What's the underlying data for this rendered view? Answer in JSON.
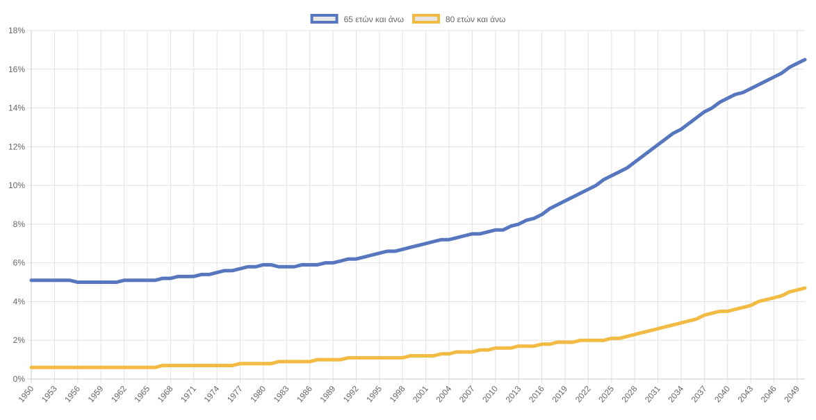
{
  "chart_data": {
    "type": "line",
    "title": "",
    "xlabel": "",
    "ylabel": "",
    "ylim": [
      0,
      18
    ],
    "y_ticks": [
      "0%",
      "2%",
      "4%",
      "6%",
      "8%",
      "10%",
      "12%",
      "14%",
      "16%",
      "18%"
    ],
    "y_tick_values": [
      0,
      2,
      4,
      6,
      8,
      10,
      12,
      14,
      16,
      18
    ],
    "y_unit_suffix": "%",
    "grid": true,
    "legend_position": "top-center",
    "x": [
      1950,
      1951,
      1952,
      1953,
      1954,
      1955,
      1956,
      1957,
      1958,
      1959,
      1960,
      1961,
      1962,
      1963,
      1964,
      1965,
      1966,
      1967,
      1968,
      1969,
      1970,
      1971,
      1972,
      1973,
      1974,
      1975,
      1976,
      1977,
      1978,
      1979,
      1980,
      1981,
      1982,
      1983,
      1984,
      1985,
      1986,
      1987,
      1988,
      1989,
      1990,
      1991,
      1992,
      1993,
      1994,
      1995,
      1996,
      1997,
      1998,
      1999,
      2000,
      2001,
      2002,
      2003,
      2004,
      2005,
      2006,
      2007,
      2008,
      2009,
      2010,
      2011,
      2012,
      2013,
      2014,
      2015,
      2016,
      2017,
      2018,
      2019,
      2020,
      2021,
      2022,
      2023,
      2024,
      2025,
      2026,
      2027,
      2028,
      2029,
      2030,
      2031,
      2032,
      2033,
      2034,
      2035,
      2036,
      2037,
      2038,
      2039,
      2040,
      2041,
      2042,
      2043,
      2044,
      2045,
      2046,
      2047,
      2048,
      2049,
      2050
    ],
    "x_tick_step": 3,
    "series": [
      {
        "name": "65 ετών και άνω",
        "color": "#5677bd",
        "values": [
          5.1,
          5.1,
          5.1,
          5.1,
          5.1,
          5.1,
          5.0,
          5.0,
          5.0,
          5.0,
          5.0,
          5.0,
          5.1,
          5.1,
          5.1,
          5.1,
          5.1,
          5.2,
          5.2,
          5.3,
          5.3,
          5.3,
          5.4,
          5.4,
          5.5,
          5.6,
          5.6,
          5.7,
          5.8,
          5.8,
          5.9,
          5.9,
          5.8,
          5.8,
          5.8,
          5.9,
          5.9,
          5.9,
          6.0,
          6.0,
          6.1,
          6.2,
          6.2,
          6.3,
          6.4,
          6.5,
          6.6,
          6.6,
          6.7,
          6.8,
          6.9,
          7.0,
          7.1,
          7.2,
          7.2,
          7.3,
          7.4,
          7.5,
          7.5,
          7.6,
          7.7,
          7.7,
          7.9,
          8.0,
          8.2,
          8.3,
          8.5,
          8.8,
          9.0,
          9.2,
          9.4,
          9.6,
          9.8,
          10.0,
          10.3,
          10.5,
          10.7,
          10.9,
          11.2,
          11.5,
          11.8,
          12.1,
          12.4,
          12.7,
          12.9,
          13.2,
          13.5,
          13.8,
          14.0,
          14.3,
          14.5,
          14.7,
          14.8,
          15.0,
          15.2,
          15.4,
          15.6,
          15.8,
          16.1,
          16.3,
          16.5
        ]
      },
      {
        "name": "80 ετών και άνω",
        "color": "#f2bb44",
        "values": [
          0.6,
          0.6,
          0.6,
          0.6,
          0.6,
          0.6,
          0.6,
          0.6,
          0.6,
          0.6,
          0.6,
          0.6,
          0.6,
          0.6,
          0.6,
          0.6,
          0.6,
          0.7,
          0.7,
          0.7,
          0.7,
          0.7,
          0.7,
          0.7,
          0.7,
          0.7,
          0.7,
          0.8,
          0.8,
          0.8,
          0.8,
          0.8,
          0.9,
          0.9,
          0.9,
          0.9,
          0.9,
          1.0,
          1.0,
          1.0,
          1.0,
          1.1,
          1.1,
          1.1,
          1.1,
          1.1,
          1.1,
          1.1,
          1.1,
          1.2,
          1.2,
          1.2,
          1.2,
          1.3,
          1.3,
          1.4,
          1.4,
          1.4,
          1.5,
          1.5,
          1.6,
          1.6,
          1.6,
          1.7,
          1.7,
          1.7,
          1.8,
          1.8,
          1.9,
          1.9,
          1.9,
          2.0,
          2.0,
          2.0,
          2.0,
          2.1,
          2.1,
          2.2,
          2.3,
          2.4,
          2.5,
          2.6,
          2.7,
          2.8,
          2.9,
          3.0,
          3.1,
          3.3,
          3.4,
          3.5,
          3.5,
          3.6,
          3.7,
          3.8,
          4.0,
          4.1,
          4.2,
          4.3,
          4.5,
          4.6,
          4.7
        ]
      }
    ],
    "legend_fill_color": "#e6e6e6"
  }
}
